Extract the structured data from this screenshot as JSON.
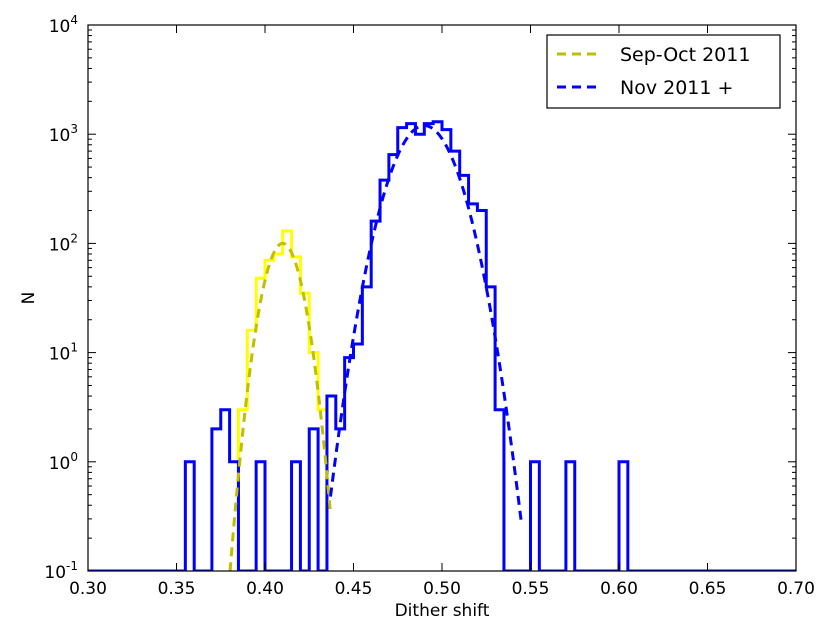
{
  "chart_data": {
    "type": "histogram",
    "xlabel": "Dither shift",
    "ylabel": "N",
    "xlim": [
      0.3,
      0.7
    ],
    "ylim": [
      0.1,
      10000
    ],
    "yscale": "log",
    "grid": false,
    "legend_position": "top-right",
    "x_ticks": [
      "0.30",
      "0.35",
      "0.40",
      "0.45",
      "0.50",
      "0.55",
      "0.60",
      "0.65",
      "0.70"
    ],
    "x_tick_values": [
      0.3,
      0.35,
      0.4,
      0.45,
      0.5,
      0.55,
      0.6,
      0.65,
      0.7
    ],
    "y_ticks": [
      {
        "value": 0.1,
        "base": "10",
        "exp": "-1"
      },
      {
        "value": 1,
        "base": "10",
        "exp": "0"
      },
      {
        "value": 10,
        "base": "10",
        "exp": "1"
      },
      {
        "value": 100,
        "base": "10",
        "exp": "2"
      },
      {
        "value": 1000,
        "base": "10",
        "exp": "3"
      },
      {
        "value": 10000,
        "base": "10",
        "exp": "4"
      }
    ],
    "histograms": [
      {
        "color": "#ffff00",
        "bin_edges": [
          0.385,
          0.39,
          0.395,
          0.4,
          0.405,
          0.41,
          0.415,
          0.42,
          0.425,
          0.43,
          0.435
        ],
        "counts": [
          3,
          16,
          48,
          70,
          80,
          130,
          75,
          35,
          10,
          3
        ]
      },
      {
        "color": "#0000ff",
        "bin_edges": [
          0.355,
          0.36,
          0.365,
          0.37,
          0.375,
          0.38,
          0.385,
          0.39,
          0.395,
          0.4,
          0.405,
          0.41,
          0.415,
          0.42,
          0.425,
          0.43,
          0.435,
          0.44,
          0.445,
          0.45,
          0.455,
          0.46,
          0.465,
          0.47,
          0.475,
          0.48,
          0.485,
          0.49,
          0.495,
          0.5,
          0.505,
          0.51,
          0.515,
          0.52,
          0.525,
          0.53,
          0.535,
          0.54,
          0.545,
          0.55,
          0.555,
          0.56,
          0.565,
          0.57,
          0.575,
          0.58,
          0.585,
          0.59,
          0.595,
          0.6,
          0.605,
          0.61
        ],
        "counts": [
          1,
          0,
          0,
          2,
          3,
          1,
          0,
          0,
          1,
          0,
          0,
          0,
          1,
          0,
          2,
          0,
          4,
          2,
          9,
          12,
          40,
          160,
          380,
          650,
          1150,
          1250,
          1000,
          1250,
          1300,
          1100,
          700,
          420,
          230,
          200,
          40,
          3,
          0,
          0,
          0,
          1,
          0,
          0,
          0,
          1,
          0,
          0,
          0,
          0,
          0,
          1,
          0
        ]
      }
    ],
    "series": [
      {
        "name": "Sep-Oct 2011",
        "color": "#bfbf00",
        "style": "dashed",
        "fit": "gaussian",
        "mu": 0.41,
        "sigma": 0.008,
        "amplitude": 100,
        "x_range": [
          0.38,
          0.437
        ]
      },
      {
        "name": "Nov 2011 +",
        "color": "#0000ff",
        "style": "dashed",
        "fit": "gaussian",
        "mu": 0.49,
        "sigma": 0.0134,
        "amplitude": 1200,
        "x_range": [
          0.437,
          0.545
        ]
      }
    ]
  }
}
